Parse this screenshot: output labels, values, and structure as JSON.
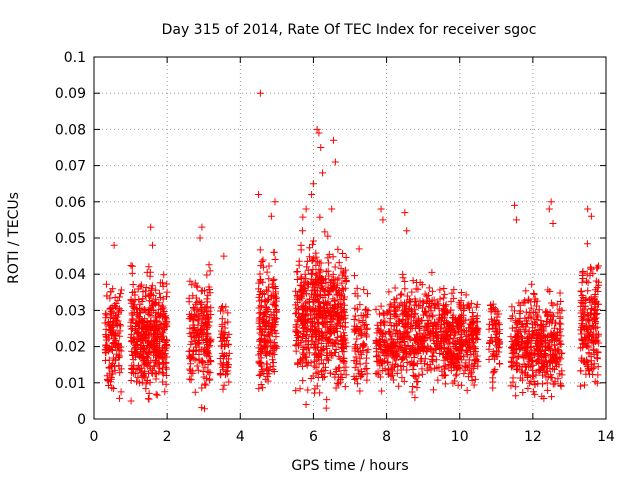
{
  "chart_data": {
    "type": "scatter",
    "title": "Day 315 of 2014, Rate Of TEC Index for receiver sgoc",
    "xlabel": "GPS time / hours",
    "ylabel": "ROTI / TECUs",
    "xlim": [
      0,
      14
    ],
    "ylim": [
      0,
      0.1
    ],
    "x_ticks": [
      "0",
      "2",
      "4",
      "6",
      "8",
      "10",
      "12",
      "14"
    ],
    "y_ticks": [
      "0",
      "0.01",
      "0.02",
      "0.03",
      "0.04",
      "0.05",
      "0.06",
      "0.07",
      "0.08",
      "0.09",
      "0.1"
    ],
    "grid": true,
    "marker": "+",
    "color": "#ff0000",
    "clusters": [
      {
        "x_range": [
          0.3,
          0.75
        ],
        "y_base": [
          0.005,
          0.04
        ],
        "count": 140
      },
      {
        "x_range": [
          1.0,
          2.0
        ],
        "y_base": [
          0.005,
          0.04
        ],
        "count": 420
      },
      {
        "x_range": [
          2.6,
          3.2
        ],
        "y_base": [
          0.005,
          0.04
        ],
        "count": 200
      },
      {
        "x_range": [
          3.45,
          3.7
        ],
        "y_base": [
          0.005,
          0.032
        ],
        "count": 60
      },
      {
        "x_range": [
          4.5,
          5.0
        ],
        "y_base": [
          0.005,
          0.045
        ],
        "count": 200
      },
      {
        "x_range": [
          5.5,
          6.9
        ],
        "y_base": [
          0.005,
          0.05
        ],
        "count": 600
      },
      {
        "x_range": [
          7.1,
          7.5
        ],
        "y_base": [
          0.007,
          0.037
        ],
        "count": 90
      },
      {
        "x_range": [
          7.7,
          8.2
        ],
        "y_base": [
          0.007,
          0.035
        ],
        "count": 120
      },
      {
        "x_range": [
          8.2,
          9.6
        ],
        "y_base": [
          0.007,
          0.038
        ],
        "count": 420
      },
      {
        "x_range": [
          9.6,
          10.5
        ],
        "y_base": [
          0.007,
          0.035
        ],
        "count": 300
      },
      {
        "x_range": [
          10.8,
          11.1
        ],
        "y_base": [
          0.01,
          0.035
        ],
        "count": 70
      },
      {
        "x_range": [
          11.4,
          12.8
        ],
        "y_base": [
          0.005,
          0.035
        ],
        "count": 420
      },
      {
        "x_range": [
          13.3,
          13.8
        ],
        "y_base": [
          0.005,
          0.045
        ],
        "count": 180
      }
    ],
    "outliers": [
      {
        "x": 4.55,
        "y": 0.09
      },
      {
        "x": 4.5,
        "y": 0.062
      },
      {
        "x": 6.1,
        "y": 0.08
      },
      {
        "x": 6.15,
        "y": 0.079
      },
      {
        "x": 6.2,
        "y": 0.075
      },
      {
        "x": 6.55,
        "y": 0.077
      },
      {
        "x": 6.6,
        "y": 0.071
      },
      {
        "x": 6.25,
        "y": 0.068
      },
      {
        "x": 6.0,
        "y": 0.065
      },
      {
        "x": 5.95,
        "y": 0.062
      },
      {
        "x": 6.5,
        "y": 0.058
      },
      {
        "x": 5.8,
        "y": 0.058
      },
      {
        "x": 5.7,
        "y": 0.052
      },
      {
        "x": 1.55,
        "y": 0.053
      },
      {
        "x": 1.6,
        "y": 0.048
      },
      {
        "x": 0.55,
        "y": 0.048
      },
      {
        "x": 2.95,
        "y": 0.053
      },
      {
        "x": 2.9,
        "y": 0.05
      },
      {
        "x": 3.55,
        "y": 0.045
      },
      {
        "x": 4.95,
        "y": 0.06
      },
      {
        "x": 4.85,
        "y": 0.056
      },
      {
        "x": 7.25,
        "y": 0.047
      },
      {
        "x": 7.85,
        "y": 0.058
      },
      {
        "x": 7.9,
        "y": 0.055
      },
      {
        "x": 8.5,
        "y": 0.057
      },
      {
        "x": 8.55,
        "y": 0.052
      },
      {
        "x": 11.5,
        "y": 0.059
      },
      {
        "x": 11.55,
        "y": 0.055
      },
      {
        "x": 12.5,
        "y": 0.06
      },
      {
        "x": 12.45,
        "y": 0.058
      },
      {
        "x": 12.55,
        "y": 0.054
      },
      {
        "x": 13.5,
        "y": 0.058
      },
      {
        "x": 13.6,
        "y": 0.056
      },
      {
        "x": 6.35,
        "y": 0.003
      },
      {
        "x": 5.8,
        "y": 0.004
      }
    ]
  }
}
